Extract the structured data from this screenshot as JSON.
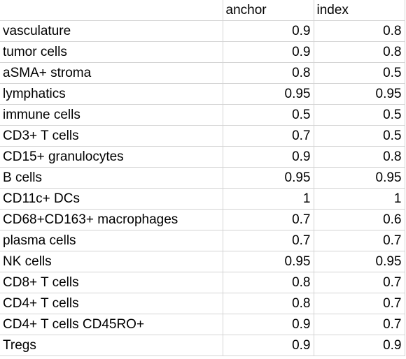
{
  "columns": [
    "",
    "anchor",
    "index"
  ],
  "rows": [
    {
      "label": "vasculature",
      "anchor": "0.9",
      "index": "0.8"
    },
    {
      "label": "tumor cells",
      "anchor": "0.9",
      "index": "0.8"
    },
    {
      "label": "aSMA+ stroma",
      "anchor": "0.8",
      "index": "0.5"
    },
    {
      "label": "lymphatics",
      "anchor": "0.95",
      "index": "0.95"
    },
    {
      "label": "immune cells",
      "anchor": "0.5",
      "index": "0.5"
    },
    {
      "label": "CD3+ T cells",
      "anchor": "0.7",
      "index": "0.5"
    },
    {
      "label": "CD15+ granulocytes",
      "anchor": "0.9",
      "index": "0.8"
    },
    {
      "label": "B cells",
      "anchor": "0.95",
      "index": "0.95"
    },
    {
      "label": "CD11c+ DCs",
      "anchor": "1",
      "index": "1"
    },
    {
      "label": "CD68+CD163+ macrophages",
      "anchor": "0.7",
      "index": "0.6"
    },
    {
      "label": "plasma cells",
      "anchor": "0.7",
      "index": "0.7"
    },
    {
      "label": "NK cells",
      "anchor": "0.95",
      "index": "0.95"
    },
    {
      "label": "CD8+ T cells",
      "anchor": "0.8",
      "index": "0.7"
    },
    {
      "label": "CD4+ T cells",
      "anchor": "0.8",
      "index": "0.7"
    },
    {
      "label": "CD4+ T cells CD45RO+",
      "anchor": "0.9",
      "index": "0.7"
    },
    {
      "label": "Tregs",
      "anchor": "0.9",
      "index": "0.9"
    }
  ],
  "colors": {
    "gridline": "#d4d4d4",
    "text": "#000000",
    "background": "#ffffff"
  }
}
